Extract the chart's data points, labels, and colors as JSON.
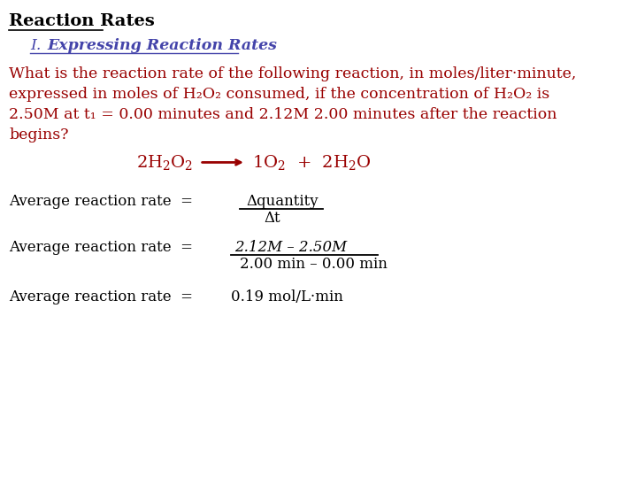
{
  "bg_color": "#ffffff",
  "title1": "Reaction Rates",
  "title_color": "#000000",
  "subtitle_color": "#4444aa",
  "red": "#990000",
  "black": "#000000",
  "para_line1": "What is the reaction rate of the following reaction, in moles/liter·minute,",
  "para_line2": "expressed in moles of H₂O₂ consumed, if the concentration of H₂O₂ is",
  "para_line3": "2.50M at t₁ = 0.00 minutes and 2.12M 2.00 minutes after the reaction",
  "para_line4": "begins?",
  "frac_num1": "Δquantity",
  "frac_den1": "Δt",
  "frac_num2": "2.12M – 2.50M",
  "frac_den2": "2.00 min – 0.00 min",
  "result": "0.19 mol/L·min"
}
